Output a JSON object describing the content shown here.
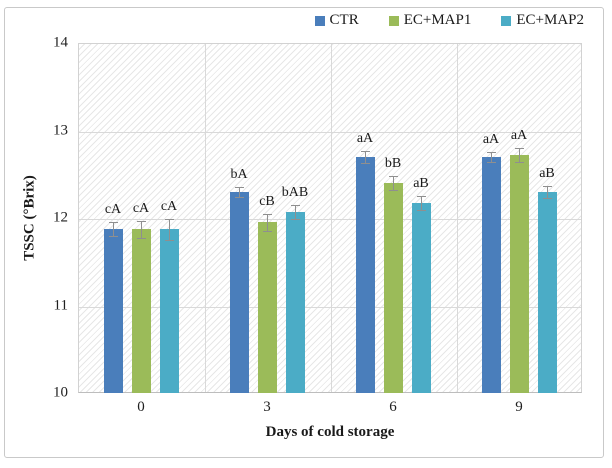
{
  "chart_data": {
    "type": "bar",
    "title": "",
    "xlabel": "Days of cold storage",
    "ylabel": "TSSC (°Brix)",
    "ylim": [
      10,
      14
    ],
    "yticks": [
      10,
      11,
      12,
      13,
      14
    ],
    "grid": true,
    "legend_position": "top-right",
    "plot_background": "diagonal-hatch",
    "error_bar_color": "#8f8f8f",
    "categories": [
      "0",
      "3",
      "6",
      "9"
    ],
    "series": [
      {
        "name": "CTR",
        "color": "#4a7ebb",
        "values": [
          11.87,
          12.3,
          12.7,
          12.7
        ],
        "errors": [
          0.08,
          0.06,
          0.07,
          0.06
        ],
        "point_labels": [
          "cA",
          "bA",
          "aA",
          "aA"
        ]
      },
      {
        "name": "EC+MAP1",
        "color": "#9bbb59",
        "values": [
          11.87,
          11.95,
          12.4,
          12.72
        ],
        "errors": [
          0.1,
          0.1,
          0.08,
          0.08
        ],
        "point_labels": [
          "cA",
          "cB",
          "bB",
          "aA"
        ]
      },
      {
        "name": "EC+MAP2",
        "color": "#4bacc6",
        "values": [
          11.87,
          12.07,
          12.17,
          12.3
        ],
        "errors": [
          0.12,
          0.08,
          0.08,
          0.07
        ],
        "point_labels": [
          "cA",
          "bAB",
          "aB",
          "aB"
        ]
      }
    ]
  }
}
